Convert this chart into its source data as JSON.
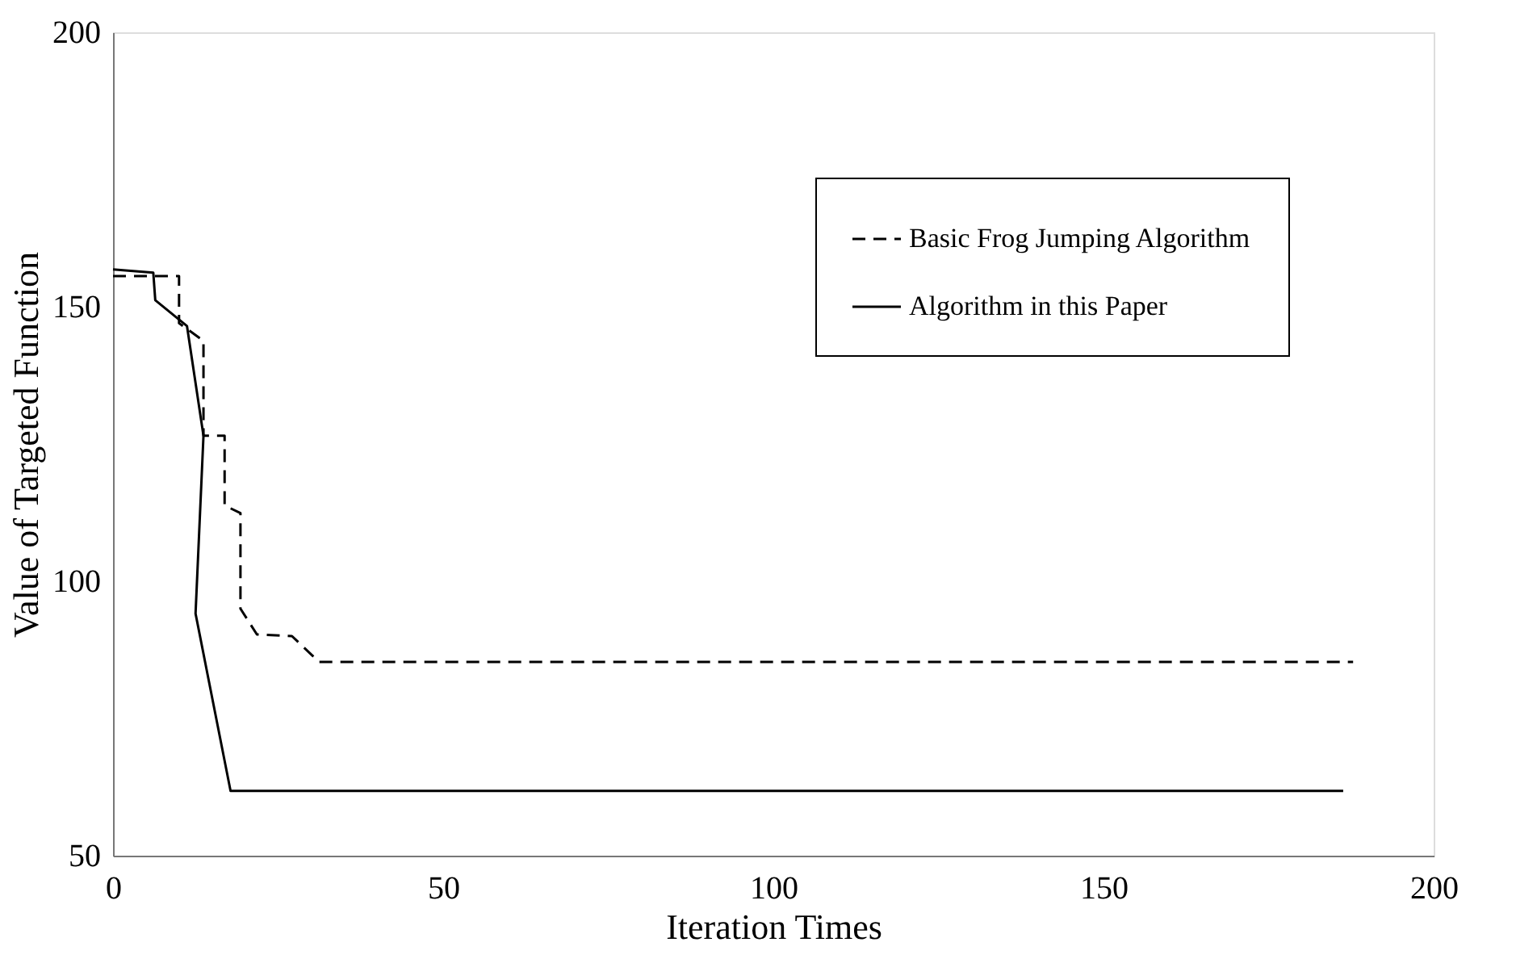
{
  "chart_data": {
    "type": "line",
    "xlabel": "Iteration Times",
    "ylabel": "Value of Targeted Function",
    "xlim": [
      0,
      200
    ],
    "ylim": [
      50,
      200
    ],
    "xticks": [
      0,
      50,
      100,
      150,
      200
    ],
    "yticks": [
      50,
      100,
      150,
      200
    ],
    "grid": false,
    "legend": "top right",
    "marker": "none",
    "series": [
      {
        "name": "Basic Frog Jumping Algorithm",
        "color": "#000000",
        "line_style": "dashed",
        "x": [
          0,
          10,
          10,
          13.7,
          13.7,
          16.9,
          16.9,
          19.3,
          19.3,
          21.8,
          27.1,
          31.2,
          187.8
        ],
        "values": [
          155.6,
          155.6,
          147,
          143.8,
          126.5,
          126.5,
          113.8,
          112.4,
          95,
          90.3,
          90,
          85.3,
          85.3
        ]
      },
      {
        "name": "Algorithm in this Paper",
        "color": "#000000",
        "line_style": "solid",
        "x": [
          0,
          6.1,
          6.4,
          11.2,
          13.7,
          12.5,
          17.8,
          186.3
        ],
        "values": [
          156.8,
          156.2,
          151.2,
          146.5,
          126.5,
          94.1,
          61.8,
          61.8
        ]
      }
    ]
  }
}
